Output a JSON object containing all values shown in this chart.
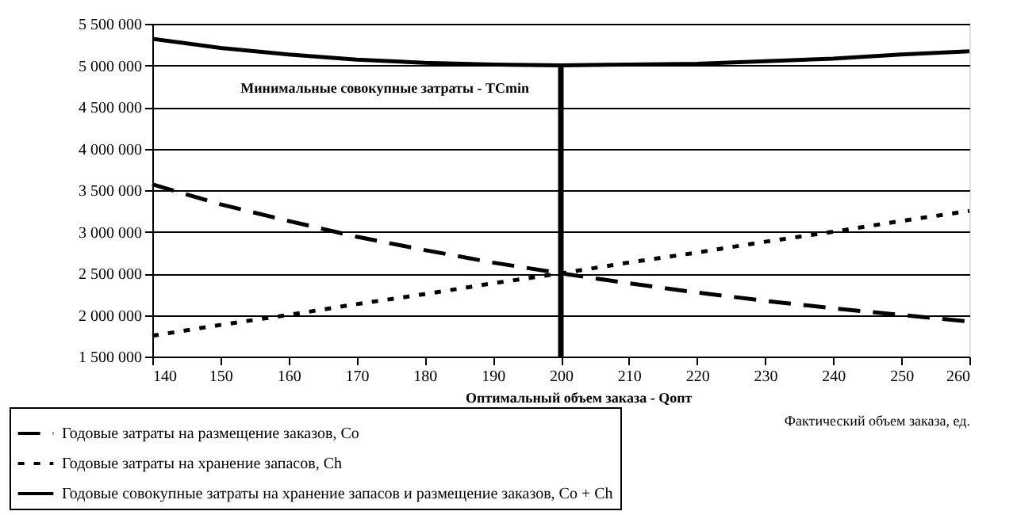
{
  "chart_data": {
    "type": "line",
    "xlabel": "Фактический объем заказа, ед.",
    "x": [
      140,
      150,
      160,
      170,
      180,
      190,
      200,
      210,
      220,
      230,
      240,
      250,
      260
    ],
    "series": [
      {
        "name": "Годовые затраты на размещение заказов, Co",
        "color": "#000000",
        "line_style": "dashed",
        "values": [
          3570000,
          3330000,
          3130000,
          2940000,
          2780000,
          2630000,
          2500000,
          2380000,
          2270000,
          2170000,
          2080000,
          2000000,
          1920000
        ]
      },
      {
        "name": "Годовые затраты на хранение запасов, Ch",
        "color": "#000000",
        "line_style": "dotted",
        "values": [
          1750000,
          1880000,
          2000000,
          2130000,
          2250000,
          2380000,
          2500000,
          2630000,
          2750000,
          2880000,
          3000000,
          3130000,
          3250000
        ]
      },
      {
        "name": "Годовые совокупные затраты на хранение запасов и размещение заказов, Co + Ch",
        "color": "#000000",
        "line_style": "solid",
        "values": [
          5320000,
          5210000,
          5130000,
          5070000,
          5030000,
          5010000,
          5000000,
          5010000,
          5020000,
          5050000,
          5080000,
          5130000,
          5170000
        ]
      },
      {
        "color": "#000000",
        "line_style": "solid",
        "x": [
          200,
          200
        ],
        "values": [
          1500000,
          5000000
        ]
      }
    ],
    "annotations": [
      {
        "text": "Минимальные совокупные затраты - TCmin",
        "x": 200,
        "y": 5000000
      },
      {
        "text": "Оптимальный объем заказа - Qопт",
        "x": 200,
        "y": 1500000
      }
    ],
    "xlim": [
      140,
      260
    ],
    "xticks": [
      140,
      150,
      160,
      170,
      180,
      190,
      200,
      210,
      220,
      230,
      240,
      250,
      260
    ],
    "ylim": [
      1500000,
      5500000
    ],
    "yticks": [
      1500000,
      2000000,
      2500000,
      3000000,
      3500000,
      4000000,
      4500000,
      5000000,
      5500000
    ],
    "grid": "y",
    "legend": "bottom left",
    "marker": "none"
  }
}
